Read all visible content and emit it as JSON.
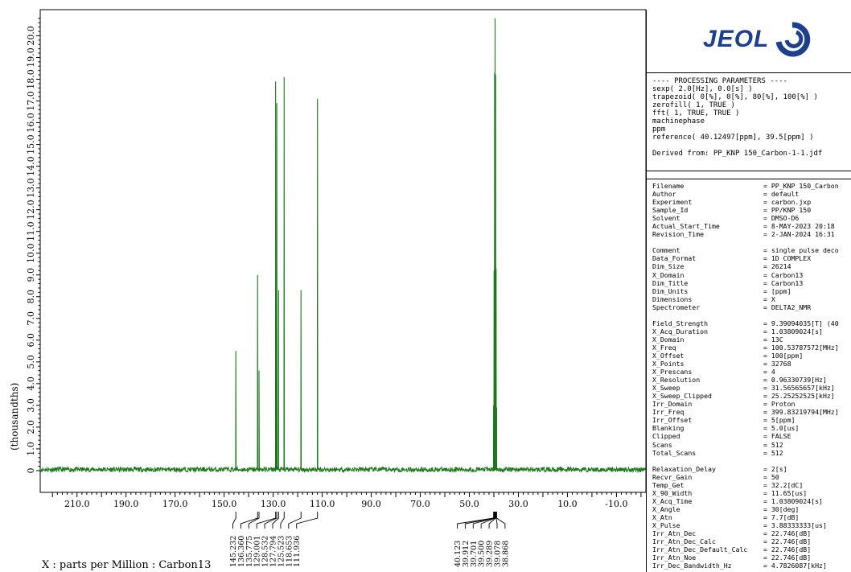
{
  "chart_data": {
    "type": "line",
    "title": "",
    "xlabel": "X : parts per Million : Carbon13",
    "ylabel": "(thousandths)",
    "xlim": [
      225.0,
      -22.0
    ],
    "ylim": [
      -1.0,
      21.2
    ],
    "x_ticks": [
      210.0,
      190.0,
      170.0,
      150.0,
      130.0,
      110.0,
      90.0,
      70.0,
      50.0,
      30.0,
      10.0,
      -10.0
    ],
    "x_tick_labels": [
      "210.0",
      "190.0",
      "170.0",
      "150.0",
      "130.0",
      "110.0",
      "90.0",
      "70.0",
      "50.0",
      "30.0",
      "10.0",
      "-10.0"
    ],
    "y_ticks": [
      0,
      1,
      2,
      3,
      4,
      5,
      6,
      7,
      8,
      9,
      10,
      11,
      12,
      13,
      14,
      15,
      16,
      17,
      18,
      19,
      20
    ],
    "y_tick_labels": [
      "0",
      "1.0",
      "2.0",
      "3.0",
      "4.0",
      "5.0",
      "6.0",
      "7.0",
      "8.0",
      "9.0",
      "10.0",
      "11.0",
      "12.0",
      "13.0",
      "14.0",
      "15.0",
      "16.0",
      "17.0",
      "18.0",
      "19.0",
      "20.0"
    ],
    "line_color": "#1a7a1a",
    "peaks": [
      {
        "x": 145.232,
        "y": 5.5
      },
      {
        "x": 136.36,
        "y": 9.0
      },
      {
        "x": 135.775,
        "y": 4.6
      },
      {
        "x": 129.001,
        "y": 17.9
      },
      {
        "x": 128.532,
        "y": 16.9
      },
      {
        "x": 127.794,
        "y": 8.3
      },
      {
        "x": 125.523,
        "y": 18.1
      },
      {
        "x": 118.653,
        "y": 8.3
      },
      {
        "x": 111.936,
        "y": 17.1
      },
      {
        "x": 40.123,
        "y": 3.0
      },
      {
        "x": 39.912,
        "y": 9.2
      },
      {
        "x": 39.701,
        "y": 18.3
      },
      {
        "x": 39.5,
        "y": 20.8
      },
      {
        "x": 39.289,
        "y": 18.2
      },
      {
        "x": 39.078,
        "y": 9.3
      },
      {
        "x": 38.868,
        "y": 2.9
      }
    ],
    "peak_label_groups": [
      [
        "145.232",
        "136.360",
        "135.775",
        "129.001",
        "128.532",
        "127.794",
        "125.523",
        "118.653",
        "111.936"
      ],
      [
        "40.123",
        "39.912",
        "39.701",
        "39.500",
        "39.289",
        "39.078",
        "38.868"
      ]
    ]
  },
  "processing": {
    "lines": [
      "---- PROCESSING PARAMETERS ----",
      "sexp( 2.0[Hz], 0.0[s] )",
      "trapezoid( 0[%], 0[%], 80[%], 100[%] )",
      "zerofill( 1, TRUE )",
      "fft( 1, TRUE, TRUE )",
      "machinephase",
      "ppm",
      "reference( 40.12497[ppm], 39.5[ppm] )",
      "",
      "Derived from: PP_KNP 150_Carbon-1-1.jdf"
    ]
  },
  "parameters": [
    [
      "Filename",
      "= PP_KNP 150_Carbon"
    ],
    [
      "Author",
      "= default"
    ],
    [
      "Experiment",
      "= carbon.jxp"
    ],
    [
      "Sample_Id",
      "= PP/KNP 150"
    ],
    [
      "Solvent",
      "= DMSO-D6"
    ],
    [
      "Actual_Start_Time",
      "= 8-MAY-2023 20:18"
    ],
    [
      "Revision_Time",
      "= 2-JAN-2024 16:31"
    ],
    [
      "",
      ""
    ],
    [
      "Comment",
      "= single pulse deco"
    ],
    [
      "Data_Format",
      "= 1D COMPLEX"
    ],
    [
      "Dim_Size",
      "= 26214"
    ],
    [
      "X_Domain",
      "= Carbon13"
    ],
    [
      "Dim_Title",
      "= Carbon13"
    ],
    [
      "Dim_Units",
      "= [ppm]"
    ],
    [
      "Dimensions",
      "= X"
    ],
    [
      "Spectrometer",
      "= DELTA2_NMR"
    ],
    [
      "",
      ""
    ],
    [
      "Field_Strength",
      "= 9.39094035[T] (40"
    ],
    [
      "X_Acq_Duration",
      "= 1.03809024[s]"
    ],
    [
      "X_Domain",
      "= 13C"
    ],
    [
      "X_Freq",
      "= 100.53787572[MHz]"
    ],
    [
      "X_Offset",
      "= 100[ppm]"
    ],
    [
      "X_Points",
      "= 32768"
    ],
    [
      "X_Prescans",
      "= 4"
    ],
    [
      "X_Resolution",
      "= 0.96330739[Hz]"
    ],
    [
      "X_Sweep",
      "= 31.56565657[kHz]"
    ],
    [
      "X_Sweep_Clipped",
      "= 25.25252525[kHz]"
    ],
    [
      "Irr_Domain",
      "= Proton"
    ],
    [
      "Irr_Freq",
      "= 399.83219794[MHz]"
    ],
    [
      "Irr_Offset",
      "= 5[ppm]"
    ],
    [
      "Blanking",
      "= 5.0[us]"
    ],
    [
      "Clipped",
      "= FALSE"
    ],
    [
      "Scans",
      "= 512"
    ],
    [
      "Total_Scans",
      "= 512"
    ],
    [
      "",
      ""
    ],
    [
      "Relaxation_Delay",
      "= 2[s]"
    ],
    [
      "Recvr_Gain",
      "= 50"
    ],
    [
      "Temp_Get",
      "= 32.2[dC]"
    ],
    [
      "X_90_Width",
      "= 11.65[us]"
    ],
    [
      "X_Acq_Time",
      "= 1.03809024[s]"
    ],
    [
      "X_Angle",
      "= 30[deg]"
    ],
    [
      "X_Atn",
      "= 7.7[dB]"
    ],
    [
      "X_Pulse",
      "= 3.88333333[us]"
    ],
    [
      "Irr_Atn_Dec",
      "= 22.746[dB]"
    ],
    [
      "Irr_Atn_Dec_Calc",
      "= 22.746[dB]"
    ],
    [
      "Irr_Atn_Dec_Default_Calc",
      "= 22.746[dB]"
    ],
    [
      "Irr_Atn_Noe",
      "= 22.746[dB]"
    ],
    [
      "Irr_Dec_Bandwidth_Hz",
      "= 4.7826087[kHz]"
    ]
  ],
  "logo_text": "JEOL"
}
